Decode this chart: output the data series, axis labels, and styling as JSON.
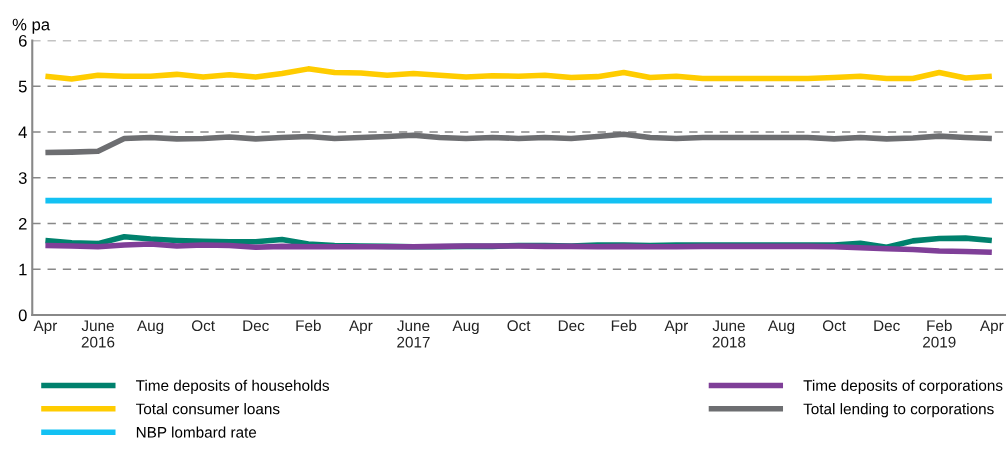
{
  "chart_data": {
    "type": "line",
    "ylabel": "% pa",
    "categories": [
      "Apr",
      null,
      "June\n2016",
      null,
      "Aug",
      null,
      "Oct",
      null,
      "Dec",
      null,
      "Feb",
      null,
      "Apr",
      null,
      "June\n2017",
      null,
      "Aug",
      null,
      "Oct",
      null,
      "Dec",
      null,
      "Feb",
      null,
      "Apr",
      null,
      "June\n2018",
      null,
      "Aug",
      null,
      "Oct",
      null,
      "Dec",
      null,
      "Feb\n2019",
      null,
      "Apr"
    ],
    "series": [
      {
        "name": "Time deposits of households",
        "color": "#00816d",
        "values": [
          1.63,
          1.58,
          1.56,
          1.71,
          1.66,
          1.63,
          1.61,
          1.6,
          1.6,
          1.65,
          1.55,
          1.52,
          1.51,
          1.5,
          1.49,
          1.49,
          1.5,
          1.5,
          1.52,
          1.52,
          1.51,
          1.53,
          1.53,
          1.52,
          1.53,
          1.53,
          1.53,
          1.53,
          1.53,
          1.53,
          1.53,
          1.57,
          1.48,
          1.62,
          1.67,
          1.68,
          1.63
        ]
      },
      {
        "name": "Total consumer loans",
        "color": "#ffcc00",
        "values": [
          5.22,
          5.16,
          5.24,
          5.22,
          5.22,
          5.26,
          5.2,
          5.25,
          5.2,
          5.28,
          5.38,
          5.3,
          5.29,
          5.24,
          5.28,
          5.24,
          5.2,
          5.23,
          5.22,
          5.24,
          5.19,
          5.21,
          5.3,
          5.19,
          5.22,
          5.17,
          5.17,
          5.17,
          5.17,
          5.17,
          5.19,
          5.22,
          5.17,
          5.17,
          5.3,
          5.18,
          5.22
        ]
      },
      {
        "name": "NBP lombard rate",
        "color": "#13c1f3",
        "values": [
          2.5,
          2.5,
          2.5,
          2.5,
          2.5,
          2.5,
          2.5,
          2.5,
          2.5,
          2.5,
          2.5,
          2.5,
          2.5,
          2.5,
          2.5,
          2.5,
          2.5,
          2.5,
          2.5,
          2.5,
          2.5,
          2.5,
          2.5,
          2.5,
          2.5,
          2.5,
          2.5,
          2.5,
          2.5,
          2.5,
          2.5,
          2.5,
          2.5,
          2.5,
          2.5,
          2.5,
          2.5
        ]
      },
      {
        "name": "Time deposits of corporations",
        "color": "#7f3f98",
        "values": [
          1.52,
          1.51,
          1.49,
          1.53,
          1.55,
          1.51,
          1.53,
          1.52,
          1.48,
          1.5,
          1.49,
          1.49,
          1.49,
          1.49,
          1.49,
          1.5,
          1.51,
          1.51,
          1.51,
          1.5,
          1.5,
          1.49,
          1.5,
          1.49,
          1.49,
          1.5,
          1.5,
          1.5,
          1.5,
          1.5,
          1.49,
          1.47,
          1.45,
          1.43,
          1.4,
          1.39,
          1.37
        ]
      },
      {
        "name": "Total lending to corporations",
        "color": "#6d6e71",
        "values": [
          3.55,
          3.56,
          3.58,
          3.86,
          3.88,
          3.85,
          3.86,
          3.89,
          3.85,
          3.88,
          3.9,
          3.86,
          3.88,
          3.9,
          3.93,
          3.88,
          3.86,
          3.88,
          3.86,
          3.88,
          3.86,
          3.9,
          3.95,
          3.88,
          3.86,
          3.88,
          3.88,
          3.88,
          3.88,
          3.88,
          3.85,
          3.88,
          3.85,
          3.87,
          3.91,
          3.88,
          3.86
        ]
      }
    ],
    "ylim": [
      0,
      6
    ],
    "yticks": [
      0,
      1,
      2,
      3,
      4,
      5,
      6
    ],
    "grid": "y",
    "legend": "bottom",
    "line_style": "solid",
    "marker": "none"
  }
}
